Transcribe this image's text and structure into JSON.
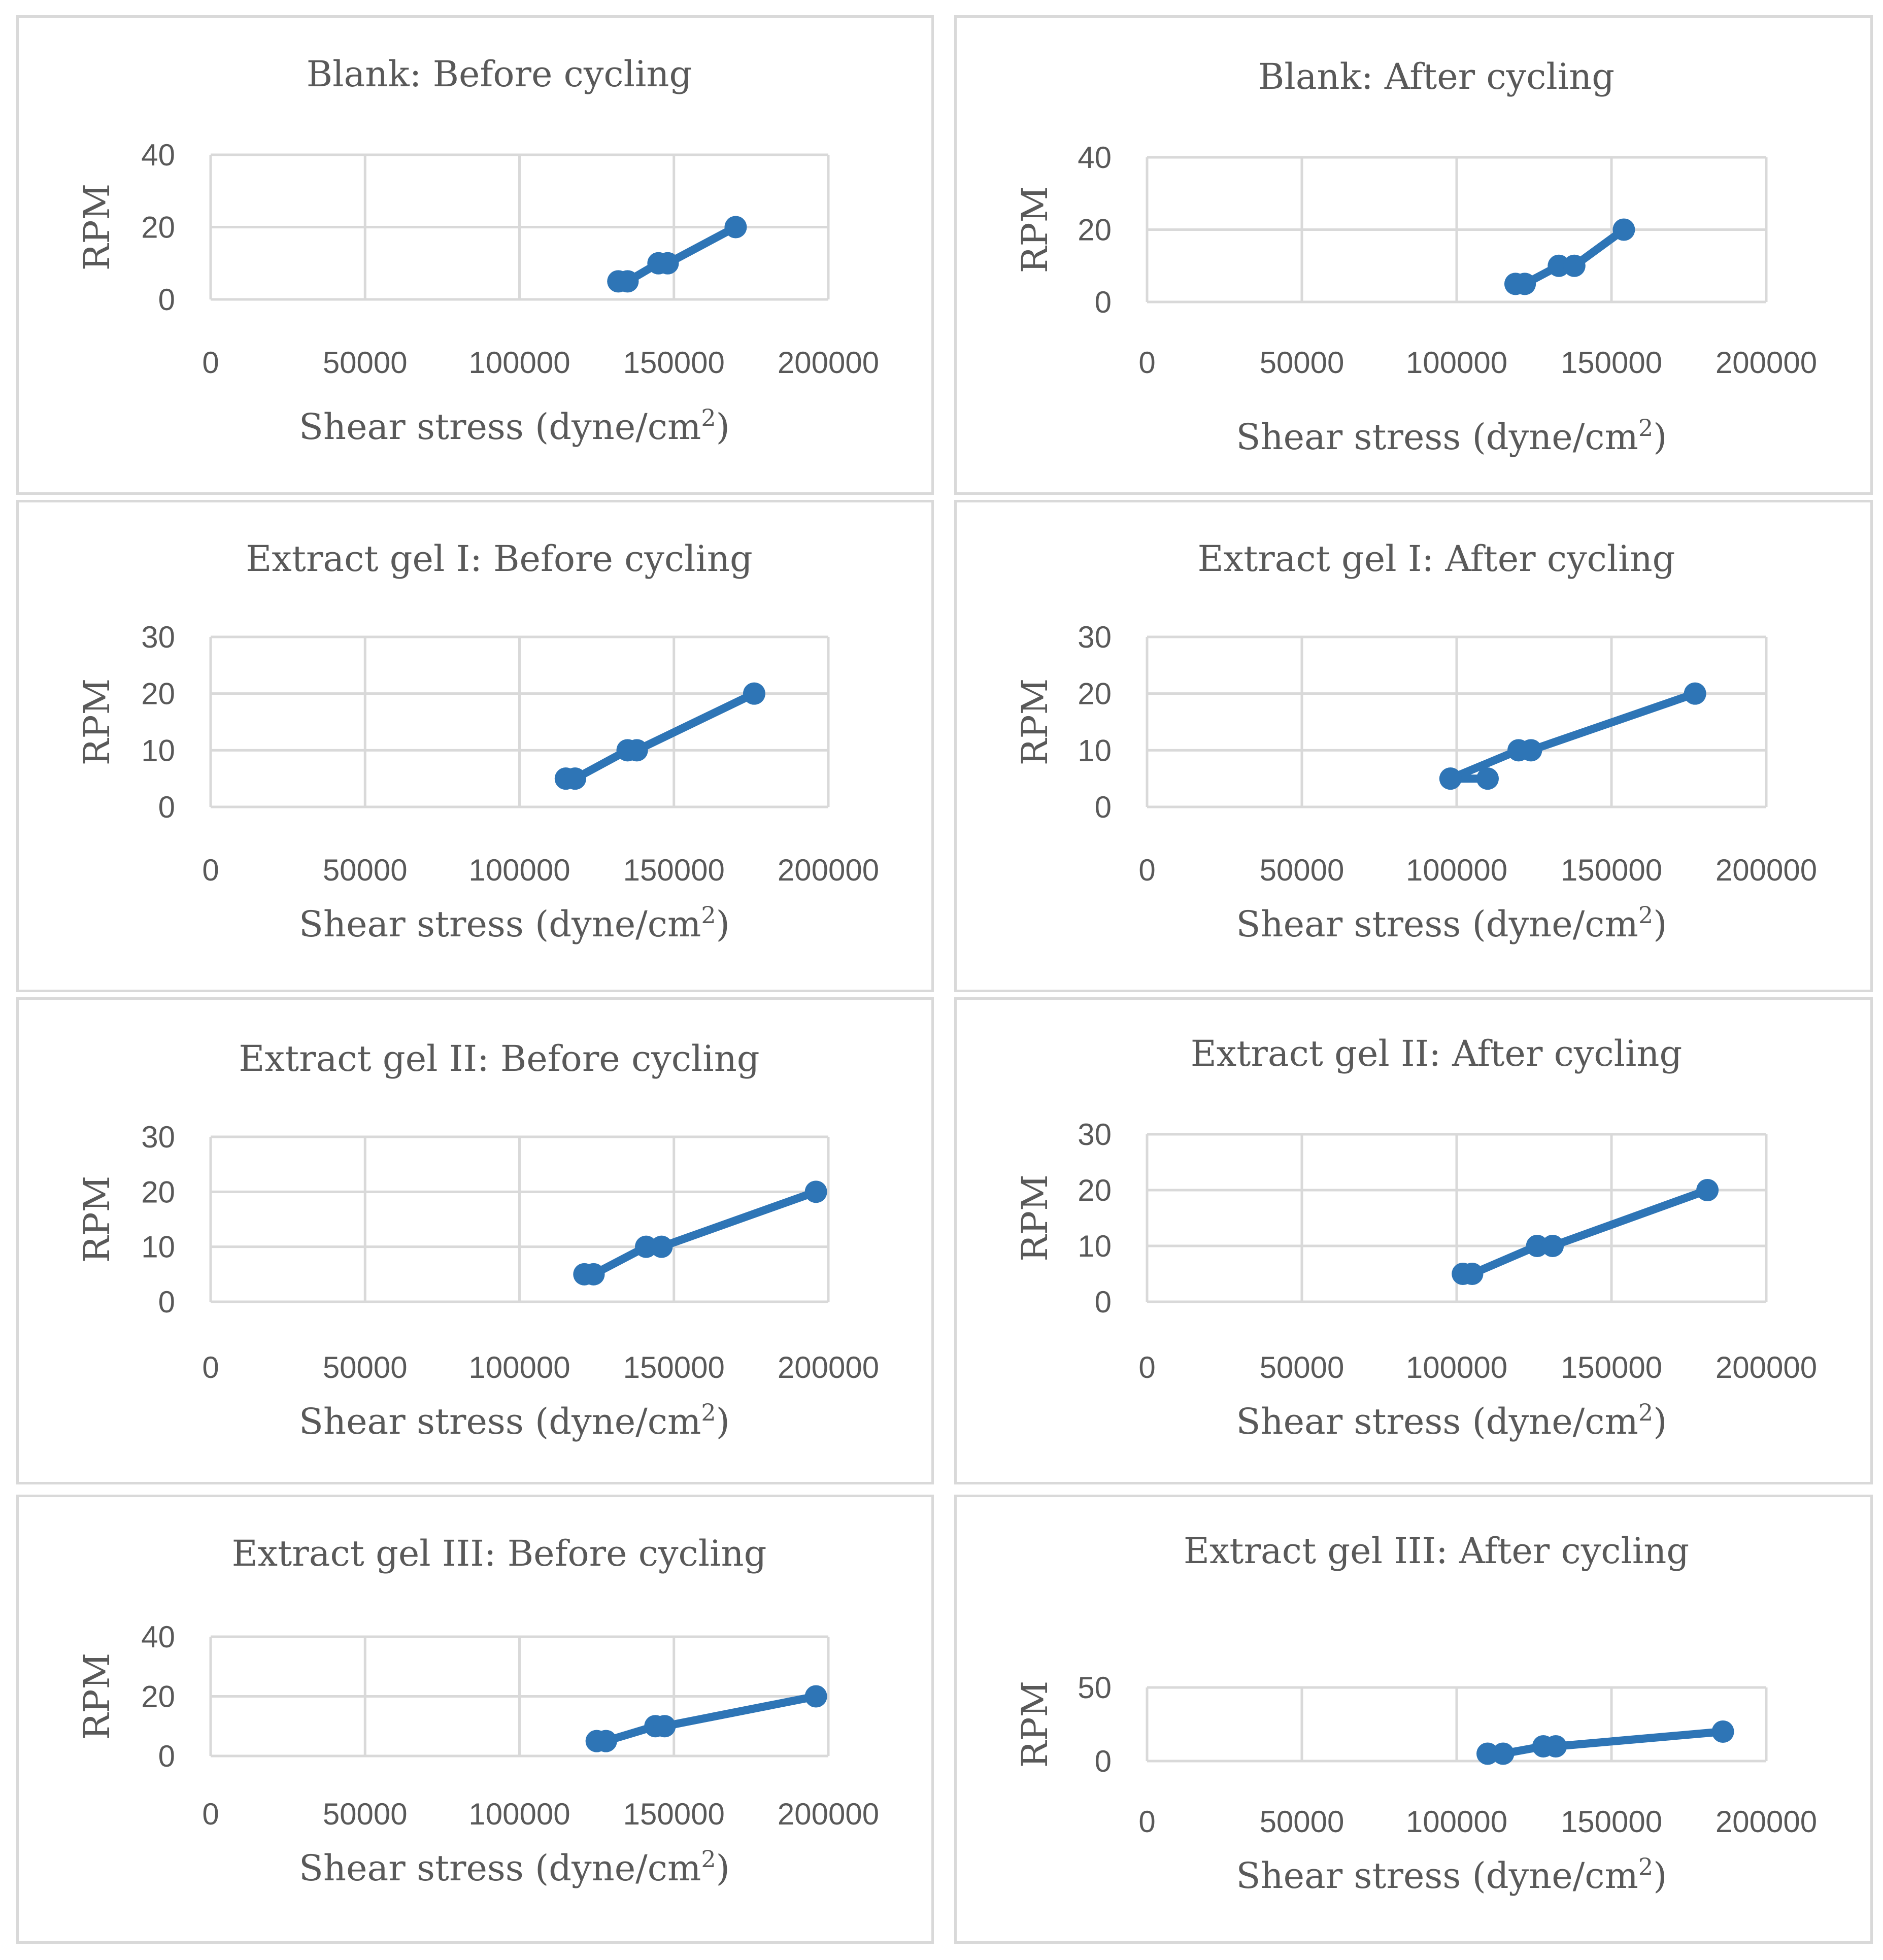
{
  "chart_data": [
    {
      "type": "line",
      "title": "Blank: Before cycling",
      "xlabel": "Shear stress (dyne/cm",
      "xlabel_sup": "2",
      "xlabel_close": ")",
      "ylabel": "RPM",
      "xlim": [
        0,
        200000
      ],
      "ylim": [
        0,
        40
      ],
      "xticks": [
        0,
        50000,
        100000,
        150000,
        200000
      ],
      "yticks": [
        0,
        20,
        40
      ],
      "series": [
        {
          "name": "RPM",
          "x": [
            132000,
            135000,
            145000,
            148000,
            170000
          ],
          "y": [
            5,
            5,
            10,
            10,
            20
          ]
        }
      ]
    },
    {
      "type": "line",
      "title": "Blank: After cycling",
      "xlabel": "Shear stress (dyne/cm",
      "xlabel_sup": "2",
      "xlabel_close": ")",
      "ylabel": "RPM",
      "xlim": [
        0,
        200000
      ],
      "ylim": [
        0,
        40
      ],
      "xticks": [
        0,
        50000,
        100000,
        150000,
        200000
      ],
      "yticks": [
        0,
        20,
        40
      ],
      "series": [
        {
          "name": "RPM",
          "x": [
            119000,
            122000,
            133000,
            138000,
            154000
          ],
          "y": [
            5,
            5,
            10,
            10,
            20
          ]
        }
      ]
    },
    {
      "type": "line",
      "title": "Extract gel I: Before cycling",
      "xlabel": "Shear stress (dyne/cm",
      "xlabel_sup": "2",
      "xlabel_close": ")",
      "ylabel": "RPM",
      "xlim": [
        0,
        200000
      ],
      "ylim": [
        0,
        30
      ],
      "xticks": [
        0,
        50000,
        100000,
        150000,
        200000
      ],
      "yticks": [
        0,
        10,
        20,
        30
      ],
      "series": [
        {
          "name": "RPM",
          "x": [
            115000,
            118000,
            135000,
            138000,
            176000
          ],
          "y": [
            5,
            5,
            10,
            10,
            20
          ]
        }
      ]
    },
    {
      "type": "line",
      "title": "Extract gel I: After cycling",
      "xlabel": "Shear stress (dyne/cm",
      "xlabel_sup": "2",
      "xlabel_close": ")",
      "ylabel": "RPM",
      "xlim": [
        0,
        200000
      ],
      "ylim": [
        0,
        30
      ],
      "xticks": [
        0,
        50000,
        100000,
        150000,
        200000
      ],
      "yticks": [
        0,
        10,
        20,
        30
      ],
      "series": [
        {
          "name": "RPM",
          "x": [
            110000,
            98000,
            120000,
            124000,
            177000
          ],
          "y": [
            5,
            5,
            10,
            10,
            20
          ]
        }
      ]
    },
    {
      "type": "line",
      "title": "Extract gel II: Before cycling",
      "xlabel": "Shear stress (dyne/cm",
      "xlabel_sup": "2",
      "xlabel_close": ")",
      "ylabel": "RPM",
      "xlim": [
        0,
        200000
      ],
      "ylim": [
        0,
        30
      ],
      "xticks": [
        0,
        50000,
        100000,
        150000,
        200000
      ],
      "yticks": [
        0,
        10,
        20,
        30
      ],
      "series": [
        {
          "name": "RPM",
          "x": [
            121000,
            124000,
            141000,
            146000,
            196000
          ],
          "y": [
            5,
            5,
            10,
            10,
            20
          ]
        }
      ]
    },
    {
      "type": "line",
      "title": "Extract gel II: After cycling",
      "xlabel": "Shear stress (dyne/cm",
      "xlabel_sup": "2",
      "xlabel_close": ")",
      "ylabel": "RPM",
      "xlim": [
        0,
        200000
      ],
      "ylim": [
        0,
        30
      ],
      "xticks": [
        0,
        50000,
        100000,
        150000,
        200000
      ],
      "yticks": [
        0,
        10,
        20,
        30
      ],
      "series": [
        {
          "name": "RPM",
          "x": [
            102000,
            105000,
            126000,
            131000,
            181000
          ],
          "y": [
            5,
            5,
            10,
            10,
            20
          ]
        }
      ]
    },
    {
      "type": "line",
      "title": "Extract gel III: Before cycling",
      "xlabel": "Shear stress (dyne/cm",
      "xlabel_sup": "2",
      "xlabel_close": ")",
      "ylabel": "RPM",
      "xlim": [
        0,
        200000
      ],
      "ylim": [
        0,
        40
      ],
      "xticks": [
        0,
        50000,
        100000,
        150000,
        200000
      ],
      "yticks": [
        0,
        20,
        40
      ],
      "series": [
        {
          "name": "RPM",
          "x": [
            125000,
            128000,
            144000,
            147000,
            196000
          ],
          "y": [
            5,
            5,
            10,
            10,
            20
          ]
        }
      ]
    },
    {
      "type": "line",
      "title": "Extract gel III: After cycling",
      "xlabel": "Shear stress (dyne/cm",
      "xlabel_sup": "2",
      "xlabel_close": ")",
      "ylabel": "RPM",
      "xlim": [
        0,
        200000
      ],
      "ylim": [
        0,
        50
      ],
      "xticks": [
        0,
        50000,
        100000,
        150000,
        200000
      ],
      "yticks": [
        0,
        50
      ],
      "series": [
        {
          "name": "RPM",
          "x": [
            110000,
            115000,
            128000,
            132000,
            186000
          ],
          "y": [
            5,
            5,
            10,
            10,
            20
          ]
        }
      ]
    }
  ]
}
